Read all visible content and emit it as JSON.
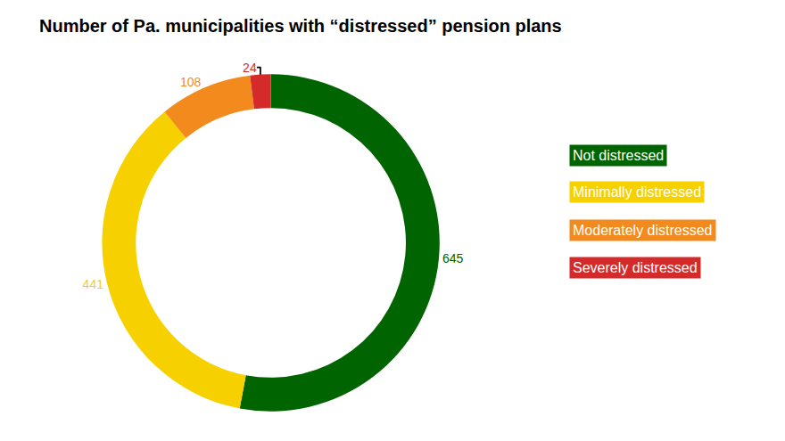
{
  "chart_data": {
    "type": "donut",
    "title": "Number of Pa. municipalities with “distressed” pension plans",
    "categories": [
      "Not distressed",
      "Minimally distressed",
      "Moderately distressed",
      "Severely distressed"
    ],
    "values": [
      645,
      441,
      108,
      24
    ],
    "colors": [
      "#006400",
      "#f7d000",
      "#f28a1e",
      "#d42a2a"
    ],
    "data_labels": true,
    "legend": "right"
  }
}
